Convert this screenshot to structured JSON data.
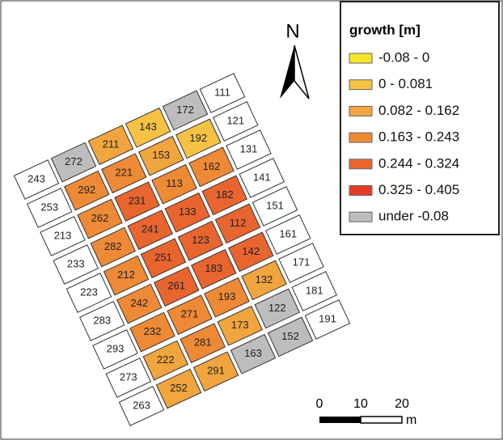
{
  "map": {
    "north": "N",
    "legend": {
      "title": "growth [m]",
      "items": [
        {
          "label": "-0.08 - 0",
          "color": "#f5e42a"
        },
        {
          "label": "0 - 0.081",
          "color": "#f6c244"
        },
        {
          "label": "0.082 - 0.162",
          "color": "#f1a53e"
        },
        {
          "label": "0.163 - 0.243",
          "color": "#ee8a36"
        },
        {
          "label": "0.244 - 0.324",
          "color": "#e9652f"
        },
        {
          "label": "0.325 - 0.405",
          "color": "#e53b2b"
        },
        {
          "label": "under -0.08",
          "color": "#bdbdbd"
        }
      ]
    },
    "scale_bar": {
      "labels": [
        "0",
        "10",
        "20"
      ],
      "unit": "m"
    },
    "columns": [
      [
        {
          "label": "111",
          "color": "#ffffff"
        },
        {
          "label": "121",
          "color": "#ffffff"
        },
        {
          "label": "131",
          "color": "#ffffff"
        },
        {
          "label": "141",
          "color": "#ffffff"
        },
        {
          "label": "151",
          "color": "#ffffff"
        },
        {
          "label": "161",
          "color": "#ffffff"
        },
        {
          "label": "171",
          "color": "#ffffff"
        },
        {
          "label": "181",
          "color": "#ffffff"
        },
        {
          "label": "191",
          "color": "#ffffff"
        }
      ],
      [
        {
          "label": "172",
          "color": "#bdbdbd"
        },
        {
          "label": "192",
          "color": "#f6c244"
        },
        {
          "label": "162",
          "color": "#ee8a36"
        },
        {
          "label": "182",
          "color": "#e9652f"
        },
        {
          "label": "112",
          "color": "#e9652f"
        },
        {
          "label": "142",
          "color": "#e9652f"
        },
        {
          "label": "132",
          "color": "#f1a53e"
        },
        {
          "label": "122",
          "color": "#bdbdbd"
        },
        {
          "label": "152",
          "color": "#bdbdbd"
        }
      ],
      [
        {
          "label": "143",
          "color": "#f6c244"
        },
        {
          "label": "153",
          "color": "#f1a53e"
        },
        {
          "label": "113",
          "color": "#ee8a36"
        },
        {
          "label": "133",
          "color": "#e9652f"
        },
        {
          "label": "123",
          "color": "#e9652f"
        },
        {
          "label": "183",
          "color": "#e9652f"
        },
        {
          "label": "193",
          "color": "#ee8a36"
        },
        {
          "label": "173",
          "color": "#f1a53e"
        },
        {
          "label": "163",
          "color": "#bdbdbd"
        }
      ],
      [
        {
          "label": "211",
          "color": "#f1a53e"
        },
        {
          "label": "221",
          "color": "#ee8a36"
        },
        {
          "label": "231",
          "color": "#e9652f"
        },
        {
          "label": "241",
          "color": "#e9652f"
        },
        {
          "label": "251",
          "color": "#e9652f"
        },
        {
          "label": "261",
          "color": "#e9652f"
        },
        {
          "label": "271",
          "color": "#ee8a36"
        },
        {
          "label": "281",
          "color": "#ee8a36"
        },
        {
          "label": "291",
          "color": "#f1a53e"
        }
      ],
      [
        {
          "label": "272",
          "color": "#bdbdbd"
        },
        {
          "label": "292",
          "color": "#ee8a36"
        },
        {
          "label": "262",
          "color": "#ee8a36"
        },
        {
          "label": "282",
          "color": "#ee8a36"
        },
        {
          "label": "212",
          "color": "#ee8a36"
        },
        {
          "label": "242",
          "color": "#ee8a36"
        },
        {
          "label": "232",
          "color": "#ee8a36"
        },
        {
          "label": "222",
          "color": "#f1a53e"
        },
        {
          "label": "252",
          "color": "#f1a53e"
        }
      ],
      [
        {
          "label": "243",
          "color": "#ffffff"
        },
        {
          "label": "253",
          "color": "#ffffff"
        },
        {
          "label": "213",
          "color": "#ffffff"
        },
        {
          "label": "233",
          "color": "#ffffff"
        },
        {
          "label": "223",
          "color": "#ffffff"
        },
        {
          "label": "283",
          "color": "#ffffff"
        },
        {
          "label": "293",
          "color": "#ffffff"
        },
        {
          "label": "273",
          "color": "#ffffff"
        },
        {
          "label": "263",
          "color": "#ffffff"
        }
      ]
    ]
  }
}
